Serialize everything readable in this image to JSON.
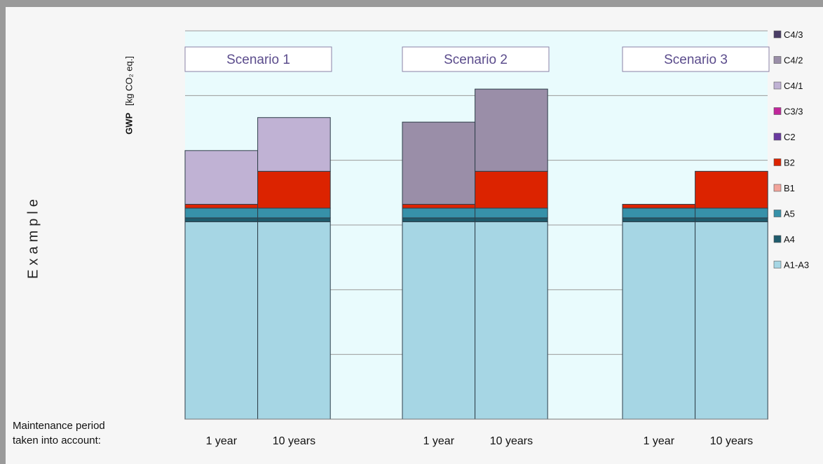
{
  "side_label": "Example",
  "maintenance_label_line1": "Maintenance period",
  "maintenance_label_line2": "taken into account:",
  "chart_data": {
    "type": "bar",
    "stacked": true,
    "ylabel_bold": "GWP",
    "ylabel_unit": "[kg CO₂ eq.]",
    "ylim": [
      0,
      6
    ],
    "grid": true,
    "legend_position": "right",
    "scenarios": [
      "Scenario 1",
      "Scenario 2",
      "Scenario 3"
    ],
    "categories": [
      {
        "scenario": 0,
        "label": "1 year"
      },
      {
        "scenario": 0,
        "label": "10 years"
      },
      {
        "scenario": 1,
        "label": "1 year"
      },
      {
        "scenario": 1,
        "label": "10 years"
      },
      {
        "scenario": 2,
        "label": "1 year"
      },
      {
        "scenario": 2,
        "label": "10 years"
      }
    ],
    "series": [
      {
        "name": "A1-A3",
        "color": "#a6d6e4",
        "values": [
          3.05,
          3.05,
          3.05,
          3.05,
          3.05,
          3.05
        ]
      },
      {
        "name": "A4",
        "color": "#1f5b6c",
        "values": [
          0.06,
          0.06,
          0.06,
          0.06,
          0.06,
          0.06
        ]
      },
      {
        "name": "A5",
        "color": "#3791a9",
        "values": [
          0.15,
          0.15,
          0.15,
          0.15,
          0.15,
          0.15
        ]
      },
      {
        "name": "B1",
        "color": "#f2a49b",
        "values": [
          0,
          0,
          0,
          0,
          0,
          0
        ]
      },
      {
        "name": "B2",
        "color": "#dc2300",
        "values": [
          0.06,
          0.57,
          0.06,
          0.57,
          0.06,
          0.57
        ]
      },
      {
        "name": "C2",
        "color": "#6a3aa0",
        "values": [
          0,
          0,
          0,
          0,
          0,
          0
        ]
      },
      {
        "name": "C3/3",
        "color": "#c1269b",
        "values": [
          0,
          0,
          0,
          0,
          0,
          0
        ]
      },
      {
        "name": "C4/1",
        "color": "#c0b2d4",
        "values": [
          0.83,
          0.83,
          0,
          0,
          0,
          0
        ]
      },
      {
        "name": "C4/2",
        "color": "#9a8ea8",
        "values": [
          0,
          0,
          1.27,
          1.27,
          0,
          0
        ]
      },
      {
        "name": "C4/3",
        "color": "#4a3d66",
        "values": [
          0,
          0,
          0,
          0,
          0,
          0
        ]
      }
    ]
  }
}
